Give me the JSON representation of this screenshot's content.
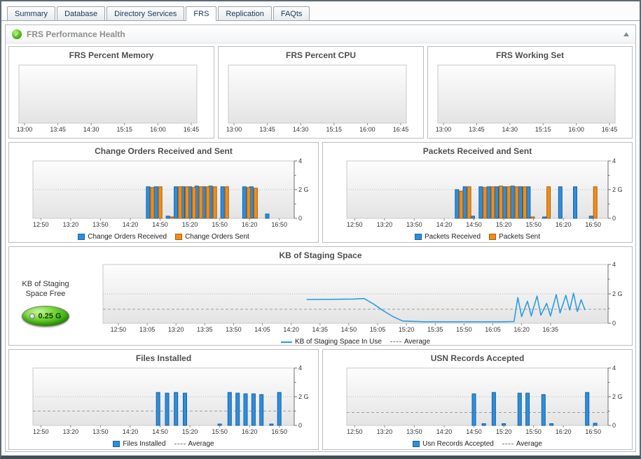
{
  "tabs": {
    "items": [
      {
        "label": "Summary"
      },
      {
        "label": "Database"
      },
      {
        "label": "Directory Services"
      },
      {
        "label": "FRS"
      },
      {
        "label": "Replication"
      },
      {
        "label": "FAQts"
      }
    ],
    "active_tab": "FRS"
  },
  "section": {
    "title": "FRS Performance Health",
    "status_icon": "green-check-icon",
    "collapse_icon": "collapse-up-arrow"
  },
  "staging_gauge": {
    "label_line1": "KB of Staging",
    "label_line2": "Space Free",
    "value": "0.25 G"
  },
  "colors": {
    "bar_blue": "#2d8ede",
    "bar_blue_border": "#17629f",
    "bar_orange": "#f08d1d",
    "bar_orange_border": "#a96007",
    "line_blue": "#2d9be0",
    "average_dash": "#90a2b2"
  },
  "chart_data": [
    {
      "id": "frs-percent-memory",
      "type": "empty",
      "title": "FRS Percent Memory",
      "x_ticks": [
        "13:00",
        "13:45",
        "14:30",
        "15:15",
        "16:00",
        "16:45"
      ]
    },
    {
      "id": "frs-percent-cpu",
      "type": "empty",
      "title": "FRS Percent CPU",
      "x_ticks": [
        "13:00",
        "13:45",
        "14:30",
        "15:15",
        "16:00",
        "16:45"
      ]
    },
    {
      "id": "frs-working-set",
      "type": "empty",
      "title": "FRS Working Set",
      "x_ticks": [
        "13:00",
        "13:45",
        "14:30",
        "15:15",
        "16:00",
        "16:45"
      ]
    },
    {
      "id": "change-orders",
      "type": "bar",
      "title": "Change Orders Received and Sent",
      "x_start": "12:42",
      "x_end": "17:05",
      "x_ticks": [
        "12:50",
        "13:20",
        "13:50",
        "14:20",
        "14:50",
        "15:20",
        "15:50",
        "16:20",
        "16:50"
      ],
      "ylim": [
        0,
        4
      ],
      "y_ticks": [
        {
          "v": 0,
          "label": "0"
        },
        {
          "v": 2,
          "label": "2 G"
        },
        {
          "v": 4,
          "label": "4"
        }
      ],
      "y_minor": [
        1,
        3
      ],
      "grid_y": [
        2
      ],
      "series": [
        {
          "name": "Change Orders Received",
          "kind": "bar",
          "color": "#2d8ede",
          "border": "#17629f",
          "points": [
            [
              "14:40",
              2.2
            ],
            [
              "14:48",
              2.2
            ],
            [
              "15:00",
              0.15
            ],
            [
              "15:08",
              2.2
            ],
            [
              "15:15",
              2.2
            ],
            [
              "15:22",
              2.2
            ],
            [
              "15:29",
              2.25
            ],
            [
              "15:36",
              2.2
            ],
            [
              "15:43",
              2.25
            ],
            [
              "15:55",
              2.2
            ],
            [
              "16:17",
              2.2
            ],
            [
              "16:24",
              2.2
            ],
            [
              "16:40",
              0.3
            ]
          ]
        },
        {
          "name": "Change Orders Sent",
          "kind": "bar",
          "color": "#f08d1d",
          "border": "#a96007",
          "points": [
            [
              "14:40",
              2.15
            ],
            [
              "14:48",
              2.2
            ],
            [
              "15:00",
              0.1
            ],
            [
              "15:08",
              2.2
            ],
            [
              "15:15",
              2.2
            ],
            [
              "15:22",
              2.15
            ],
            [
              "15:29",
              2.2
            ],
            [
              "15:36",
              2.2
            ],
            [
              "15:43",
              2.2
            ],
            [
              "15:55",
              2.2
            ],
            [
              "16:17",
              2.15
            ],
            [
              "16:24",
              2.1
            ]
          ]
        }
      ]
    },
    {
      "id": "packets",
      "type": "bar",
      "title": "Packets Received and Sent",
      "x_start": "12:42",
      "x_end": "17:05",
      "x_ticks": [
        "12:50",
        "13:20",
        "13:50",
        "14:20",
        "14:50",
        "15:20",
        "15:50",
        "16:20",
        "16:50"
      ],
      "ylim": [
        0,
        4
      ],
      "y_ticks": [
        {
          "v": 0,
          "label": "0"
        },
        {
          "v": 2,
          "label": "2 G"
        },
        {
          "v": 4,
          "label": "4"
        }
      ],
      "y_minor": [
        1,
        3
      ],
      "grid_y": [
        2
      ],
      "series": [
        {
          "name": "Packets Received",
          "kind": "bar",
          "color": "#2d8ede",
          "border": "#17629f",
          "points": [
            [
              "14:35",
              2.0
            ],
            [
              "14:43",
              2.2
            ],
            [
              "14:51",
              0.15
            ],
            [
              "14:59",
              2.2
            ],
            [
              "15:07",
              2.2
            ],
            [
              "15:15",
              2.2
            ],
            [
              "15:23",
              2.2
            ],
            [
              "15:31",
              2.25
            ],
            [
              "15:39",
              2.2
            ],
            [
              "15:47",
              2.2
            ],
            [
              "16:03",
              0.1
            ],
            [
              "16:19",
              2.2
            ],
            [
              "16:34",
              2.2
            ],
            [
              "16:50",
              0.15
            ]
          ]
        },
        {
          "name": "Packets Sent",
          "kind": "bar",
          "color": "#f08d1d",
          "border": "#a96007",
          "points": [
            [
              "14:35",
              1.9
            ],
            [
              "14:43",
              2.2
            ],
            [
              "14:59",
              2.15
            ],
            [
              "15:07",
              2.2
            ],
            [
              "15:15",
              2.25
            ],
            [
              "15:23",
              2.2
            ],
            [
              "15:31",
              2.2
            ],
            [
              "15:39",
              2.2
            ],
            [
              "15:47",
              0.1
            ],
            [
              "16:03",
              2.2
            ],
            [
              "16:50",
              2.2
            ]
          ]
        }
      ]
    },
    {
      "id": "staging",
      "type": "line",
      "title": "KB of Staging Space",
      "x_start": "12:42",
      "x_end": "17:05",
      "x_ticks": [
        "12:50",
        "13:05",
        "13:20",
        "13:35",
        "13:50",
        "14:05",
        "14:20",
        "14:35",
        "14:50",
        "15:05",
        "15:20",
        "15:35",
        "15:50",
        "16:05",
        "16:20",
        "16:35"
      ],
      "ylim": [
        0,
        4
      ],
      "y_ticks": [
        {
          "v": 0,
          "label": "0"
        },
        {
          "v": 2,
          "label": "2 G"
        },
        {
          "v": 4,
          "label": "4"
        }
      ],
      "y_minor": [
        1,
        3
      ],
      "grid_y": [
        2
      ],
      "average": 0.95,
      "average_label": "Average",
      "series": [
        {
          "name": "KB of Staging Space In Use",
          "kind": "line",
          "color": "#2d9be0",
          "points": [
            [
              "14:28",
              1.62
            ],
            [
              "14:40",
              1.63
            ],
            [
              "14:52",
              1.65
            ],
            [
              "14:58",
              1.68
            ],
            [
              "15:03",
              1.3
            ],
            [
              "15:08",
              0.85
            ],
            [
              "15:13",
              0.45
            ],
            [
              "15:18",
              0.15
            ],
            [
              "15:30",
              0.1
            ],
            [
              "15:45",
              0.1
            ],
            [
              "16:00",
              0.1
            ],
            [
              "16:10",
              0.1
            ],
            [
              "16:16",
              0.12
            ],
            [
              "16:18",
              1.75
            ],
            [
              "16:20",
              0.45
            ],
            [
              "16:23",
              1.5
            ],
            [
              "16:25",
              0.5
            ],
            [
              "16:28",
              1.85
            ],
            [
              "16:30",
              0.55
            ],
            [
              "16:33",
              1.35
            ],
            [
              "16:35",
              0.5
            ],
            [
              "16:38",
              1.95
            ],
            [
              "16:40",
              0.7
            ],
            [
              "16:43",
              1.9
            ],
            [
              "16:45",
              0.9
            ],
            [
              "16:47",
              2.05
            ],
            [
              "16:49",
              0.8
            ],
            [
              "16:51",
              1.6
            ],
            [
              "16:53",
              0.9
            ]
          ]
        }
      ]
    },
    {
      "id": "files-installed",
      "type": "bar",
      "title": "Files Installed",
      "x_start": "12:42",
      "x_end": "17:05",
      "x_ticks": [
        "12:50",
        "13:20",
        "13:50",
        "14:20",
        "14:50",
        "15:20",
        "15:50",
        "16:20",
        "16:50"
      ],
      "ylim": [
        0,
        4
      ],
      "y_ticks": [
        {
          "v": 0,
          "label": "0"
        },
        {
          "v": 2,
          "label": "2 G"
        },
        {
          "v": 4,
          "label": "4"
        }
      ],
      "y_minor": [
        1,
        3
      ],
      "grid_y": [
        2
      ],
      "average": 1.0,
      "average_label": "Average",
      "series": [
        {
          "name": "Files Installed",
          "kind": "bar",
          "color": "#2d8ede",
          "border": "#17629f",
          "points": [
            [
              "14:48",
              2.3
            ],
            [
              "14:57",
              2.25
            ],
            [
              "15:06",
              2.3
            ],
            [
              "15:15",
              2.25
            ],
            [
              "15:50",
              0.1
            ],
            [
              "16:00",
              2.3
            ],
            [
              "16:08",
              2.25
            ],
            [
              "16:16",
              2.2
            ],
            [
              "16:24",
              2.2
            ],
            [
              "16:32",
              2.15
            ],
            [
              "16:42",
              0.1
            ],
            [
              "16:50",
              2.3
            ]
          ]
        }
      ]
    },
    {
      "id": "usn-records",
      "type": "bar",
      "title": "USN Records Accepted",
      "x_start": "12:42",
      "x_end": "17:05",
      "x_ticks": [
        "12:50",
        "13:20",
        "13:50",
        "14:20",
        "14:50",
        "15:20",
        "15:50",
        "16:20",
        "16:50"
      ],
      "ylim": [
        0,
        4
      ],
      "y_ticks": [
        {
          "v": 0,
          "label": "0"
        },
        {
          "v": 2,
          "label": "2 G"
        },
        {
          "v": 4,
          "label": "4"
        }
      ],
      "y_minor": [
        1,
        3
      ],
      "grid_y": [
        2
      ],
      "average": 0.9,
      "average_label": "Average",
      "series": [
        {
          "name": "Usn Records Accepted",
          "kind": "bar",
          "color": "#2d8ede",
          "border": "#17629f",
          "points": [
            [
              "14:50",
              2.2
            ],
            [
              "15:00",
              0.12
            ],
            [
              "15:10",
              2.3
            ],
            [
              "15:20",
              0.12
            ],
            [
              "15:36",
              2.25
            ],
            [
              "15:44",
              2.25
            ],
            [
              "16:00",
              2.15
            ],
            [
              "16:08",
              0.12
            ],
            [
              "16:44",
              2.3
            ],
            [
              "16:52",
              0.15
            ]
          ]
        }
      ]
    }
  ]
}
